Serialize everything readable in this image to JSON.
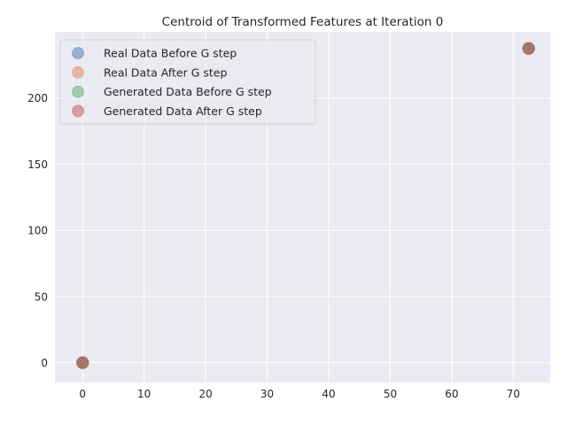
{
  "chart_data": {
    "type": "scatter",
    "title": "Centroid of Transformed Features at Iteration 0",
    "xlabel": "",
    "ylabel": "",
    "xlim": [
      -4.5,
      76
    ],
    "ylim": [
      -15,
      250
    ],
    "xticks": [
      0,
      10,
      20,
      30,
      40,
      50,
      60,
      70
    ],
    "yticks": [
      0,
      50,
      100,
      150,
      200
    ],
    "grid": true,
    "legend_position": "top-left",
    "series": [
      {
        "name": "Real Data Before G step",
        "color": "#4C72B0",
        "points": [
          [
            0,
            0
          ],
          [
            72.5,
            237.5
          ]
        ]
      },
      {
        "name": "Real Data After G step",
        "color": "#DD8452",
        "points": [
          [
            0,
            0
          ],
          [
            72.5,
            237.5
          ]
        ]
      },
      {
        "name": "Generated Data Before G step",
        "color": "#55A868",
        "points": [
          [
            0,
            0
          ],
          [
            72.5,
            237.5
          ]
        ]
      },
      {
        "name": "Generated Data After G step",
        "color": "#C44E52",
        "points": [
          [
            0,
            0
          ],
          [
            72.5,
            237.5
          ]
        ]
      }
    ]
  },
  "style": {
    "plot_background": "#EAEAF2",
    "grid_color": "#FFFFFF",
    "text_color": "#262626",
    "marker_alpha": 0.5
  }
}
